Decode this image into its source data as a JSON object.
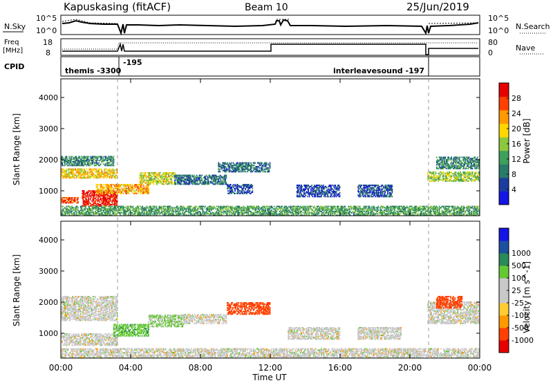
{
  "header": {
    "station": "Kapuskasing (fitACF)",
    "beam": "Beam 10",
    "date": "25/Jun/2019"
  },
  "top_panels": {
    "nsky_label": "N.Sky",
    "nsky_ticks": [
      "10^5",
      "10^0"
    ],
    "nsearch_label": "N.Search",
    "nsearch_ticks": [
      "10^5",
      "10^0"
    ],
    "freq_label_line1": "Freq",
    "freq_label_line2": "[MHz]",
    "freq_ticks": [
      "18",
      "8"
    ],
    "nave_label": "Nave",
    "nave_ticks": [
      "80",
      "0"
    ],
    "cpid_label": "CPID",
    "cpid_segments": [
      "themis -3300",
      "-195",
      "interleavesound -197"
    ]
  },
  "colors": {
    "power_scale": [
      "#1414e6",
      "#1e3ca0",
      "#2a7a6a",
      "#3fa05a",
      "#8cc83c",
      "#ffd700",
      "#ff9900",
      "#ff4000",
      "#e60000"
    ],
    "velocity_scale": [
      "#e60000",
      "#ff4000",
      "#ff9900",
      "#ffcc33",
      "#c8c8c8",
      "#c8c8c8",
      "#64c832",
      "#2a8a5a",
      "#1e50a0",
      "#1414e6"
    ]
  },
  "chart_data": [
    {
      "type": "heatmap",
      "title": "Power",
      "xlabel": "Time UT",
      "ylabel": "Slant Range [km]",
      "x_ticks": [
        "00:00",
        "04:00",
        "08:00",
        "12:00",
        "16:00",
        "20:00",
        "00:00"
      ],
      "y_ticks": [
        "1000",
        "2000",
        "3000",
        "4000"
      ],
      "ylim": [
        200,
        4600
      ],
      "colorbar_label": "Power [dB]",
      "colorbar_ticks": [
        "4",
        "8",
        "12",
        "16",
        "20",
        "24",
        "28"
      ],
      "colorbar_range": [
        0,
        32
      ],
      "regions": [
        {
          "t0": 0.0,
          "t1": 3.2,
          "r0": 1400,
          "r1": 1700,
          "level": 20
        },
        {
          "t0": 0.0,
          "t1": 3.0,
          "r0": 1800,
          "r1": 2100,
          "level": 10
        },
        {
          "t0": 0.0,
          "t1": 1.0,
          "r0": 600,
          "r1": 800,
          "level": 26
        },
        {
          "t0": 1.2,
          "t1": 3.2,
          "r0": 500,
          "r1": 1000,
          "level": 30
        },
        {
          "t0": 2.0,
          "t1": 5.0,
          "r0": 900,
          "r1": 1200,
          "level": 22
        },
        {
          "t0": 4.5,
          "t1": 6.5,
          "r0": 1200,
          "r1": 1600,
          "level": 18
        },
        {
          "t0": 6.5,
          "t1": 9.5,
          "r0": 1200,
          "r1": 1500,
          "level": 8
        },
        {
          "t0": 9.0,
          "t1": 12.0,
          "r0": 1600,
          "r1": 1900,
          "level": 8
        },
        {
          "t0": 9.5,
          "t1": 11.0,
          "r0": 900,
          "r1": 1200,
          "level": 6
        },
        {
          "t0": 13.5,
          "t1": 16.0,
          "r0": 800,
          "r1": 1200,
          "level": 5
        },
        {
          "t0": 17.0,
          "t1": 19.0,
          "r0": 800,
          "r1": 1200,
          "level": 6
        },
        {
          "t0": 21.0,
          "t1": 24.0,
          "r0": 1300,
          "r1": 1600,
          "level": 16
        },
        {
          "t0": 21.5,
          "t1": 24.0,
          "r0": 1700,
          "r1": 2100,
          "level": 10
        },
        {
          "t0": 0.0,
          "t1": 24.0,
          "r0": 200,
          "r1": 500,
          "level": 12
        }
      ]
    },
    {
      "type": "heatmap",
      "title": "Velocity",
      "xlabel": "Time UT",
      "ylabel": "Slant Range [km]",
      "x_ticks": [
        "00:00",
        "04:00",
        "08:00",
        "12:00",
        "16:00",
        "20:00",
        "00:00"
      ],
      "y_ticks": [
        "1000",
        "2000",
        "3000",
        "4000"
      ],
      "ylim": [
        200,
        4600
      ],
      "colorbar_label": "Velocity [m s^-1]",
      "colorbar_ticks": [
        "-1000",
        "-500",
        "-100",
        "-25",
        "25",
        "100",
        "500",
        "1000"
      ],
      "regions": [
        {
          "t0": 0.0,
          "t1": 3.2,
          "r0": 1400,
          "r1": 2200,
          "level": 0
        },
        {
          "t0": 0.0,
          "t1": 3.2,
          "r0": 600,
          "r1": 1000,
          "level": 0
        },
        {
          "t0": 3.0,
          "t1": 5.0,
          "r0": 900,
          "r1": 1300,
          "level": 80
        },
        {
          "t0": 5.0,
          "t1": 7.0,
          "r0": 1200,
          "r1": 1600,
          "level": 30
        },
        {
          "t0": 7.0,
          "t1": 9.5,
          "r0": 1300,
          "r1": 1600,
          "level": 0
        },
        {
          "t0": 9.5,
          "t1": 12.0,
          "r0": 1600,
          "r1": 2000,
          "level": -150
        },
        {
          "t0": 13.0,
          "t1": 16.0,
          "r0": 800,
          "r1": 1200,
          "level": 0
        },
        {
          "t0": 17.0,
          "t1": 19.5,
          "r0": 800,
          "r1": 1200,
          "level": 0
        },
        {
          "t0": 21.0,
          "t1": 24.0,
          "r0": 1300,
          "r1": 2000,
          "level": 0
        },
        {
          "t0": 21.5,
          "t1": 23.0,
          "r0": 1800,
          "r1": 2200,
          "level": -150
        },
        {
          "t0": 0.0,
          "t1": 24.0,
          "r0": 200,
          "r1": 500,
          "level": 0
        }
      ]
    }
  ]
}
